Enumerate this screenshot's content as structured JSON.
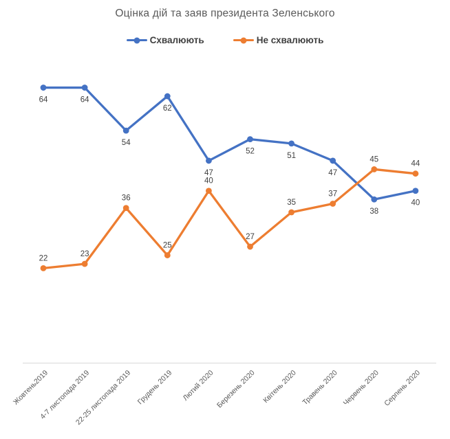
{
  "chart": {
    "colors": {
      "approve": "#4472C4",
      "disapprove": "#ED7D31",
      "title": "#595959",
      "legend_text": "#404040",
      "data_label": "#404040",
      "tick_label": "#595959",
      "axis_line": "#D9D9D9",
      "background": "#FFFFFF"
    }
  },
  "chart_data": {
    "type": "line",
    "title": "Оцінка дій та заяв президента Зеленського",
    "categories": [
      "Жовтень2019",
      "4-7 листопада 2019",
      "22-25 листопада 2019",
      "Грудень 2019",
      "Лютий 2020",
      "Березень 2020",
      "Квітень 2020",
      "Травень 2020",
      "Червень 2020",
      "Серпень 2020"
    ],
    "series": [
      {
        "name": "Схвалюють",
        "key": "approve",
        "color": "#4472C4",
        "values": [
          64,
          64,
          54,
          62,
          47,
          52,
          51,
          47,
          38,
          40
        ],
        "label_position": "below"
      },
      {
        "name": "Не схвалюють",
        "key": "disapprove",
        "color": "#ED7D31",
        "values": [
          22,
          23,
          36,
          25,
          40,
          27,
          35,
          37,
          45,
          44
        ],
        "label_position": "above"
      }
    ],
    "xlabel": "",
    "ylabel": "",
    "ylim": [
      0,
      70
    ],
    "grid": false,
    "legend_position": "top",
    "marker": "circle"
  }
}
